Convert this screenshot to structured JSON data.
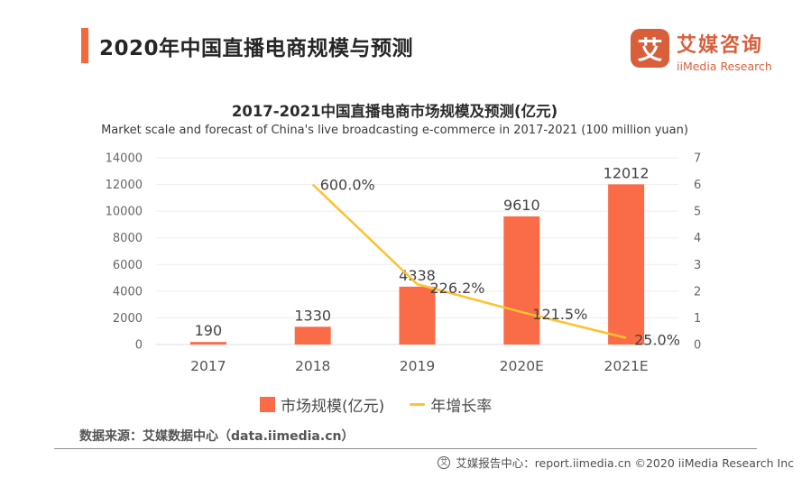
{
  "header": {
    "title": "2020年中国直播电商规模与预测",
    "logo": {
      "badge": "艾",
      "name_cn": "艾媒咨询",
      "name_en": "iiMedia Research"
    }
  },
  "chart": {
    "title": "2017-2021中国直播电商市场规模及预测(亿元)",
    "subtitle": "Market scale and forecast of China's live broadcasting e-commerce in 2017-2021 (100 million yuan)"
  },
  "chart_data": {
    "type": "bar",
    "categories": [
      "2017",
      "2018",
      "2019",
      "2020E",
      "2021E"
    ],
    "series": [
      {
        "name": "市场规模(亿元)",
        "type": "bar",
        "axis": "left",
        "color": "#FA6B47",
        "values": [
          190,
          1330,
          4338,
          9610,
          12012
        ],
        "labels": [
          "190",
          "1330",
          "4338",
          "9610",
          "12012"
        ]
      },
      {
        "name": "年增长率",
        "type": "line",
        "axis": "right",
        "color": "#FFC12E",
        "values_percent": [
          null,
          600.0,
          226.2,
          121.5,
          25.0
        ],
        "labels": [
          null,
          "600.0%",
          "226.2%",
          "121.5%",
          "25.0%"
        ]
      }
    ],
    "left_axis": {
      "min": 0,
      "max": 14000,
      "step": 2000,
      "ticks": [
        "0",
        "2000",
        "4000",
        "6000",
        "8000",
        "10000",
        "12000",
        "14000"
      ]
    },
    "right_axis": {
      "min": 0,
      "max": 7,
      "step": 1,
      "ticks": [
        "0",
        "1",
        "2",
        "3",
        "4",
        "5",
        "6",
        "7"
      ]
    },
    "grid": true,
    "legend_position": "bottom",
    "title": "2017-2021中国直播电商市场规模及预测(亿元)",
    "xlabel": "",
    "ylabel": ""
  },
  "colors": {
    "accent": "#F4683C",
    "logo": "#D95F3B",
    "bar": "#FA6B47",
    "line": "#FFC12E"
  },
  "source": {
    "text": "数据来源：艾媒数据中心（data.iimedia.cn）"
  },
  "footer": {
    "text": "艾媒报告中心：report.iimedia.cn  ©2020  iiMedia Research  Inc"
  }
}
